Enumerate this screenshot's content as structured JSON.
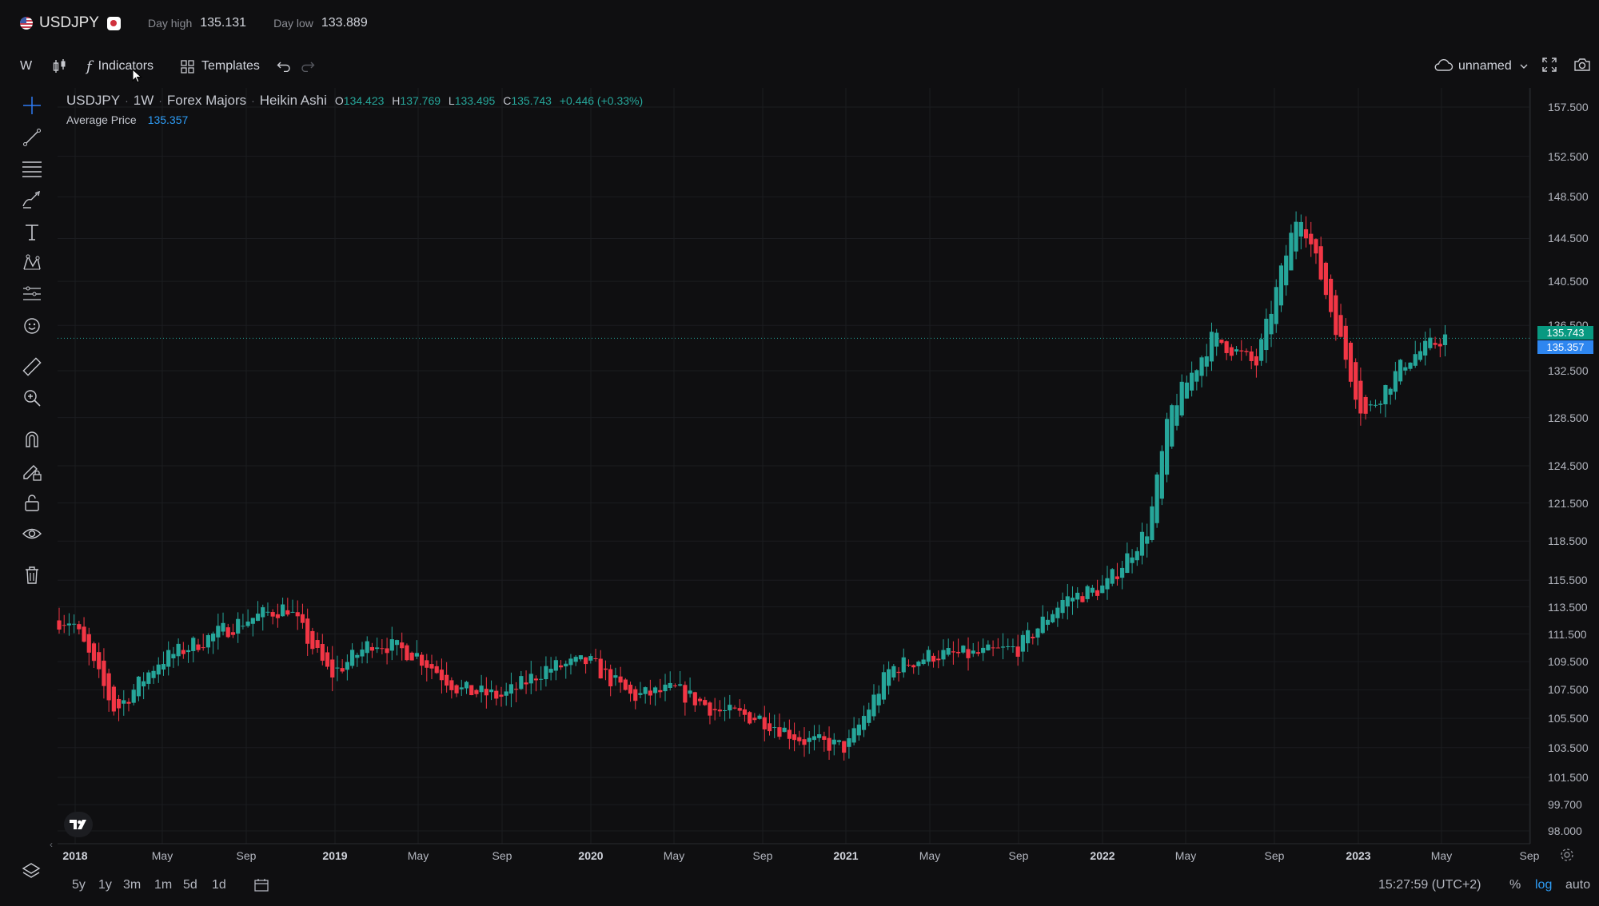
{
  "header": {
    "symbol": "USDJPY",
    "day_high_label": "Day high",
    "day_high_value": "135.131",
    "day_low_label": "Day low",
    "day_low_value": "133.889"
  },
  "toolbar": {
    "interval": "W",
    "indicators_label": "Indicators",
    "templates_label": "Templates",
    "layout_name": "unnamed"
  },
  "legend": {
    "symbol": "USDJPY",
    "interval": "1W",
    "exchange": "Forex Majors",
    "chart_style": "Heikin Ashi",
    "open_label": "O",
    "open": "134.423",
    "high_label": "H",
    "high": "137.769",
    "low_label": "L",
    "low": "133.495",
    "close_label": "C",
    "close": "135.743",
    "change": "+0.446 (+0.33%)",
    "indicator_name": "Average Price",
    "indicator_value": "135.357"
  },
  "price_axis": {
    "ticks": [
      "157.500",
      "152.500",
      "148.500",
      "144.500",
      "140.500",
      "136.500",
      "132.500",
      "128.500",
      "124.500",
      "121.500",
      "118.500",
      "115.500",
      "113.500",
      "111.500",
      "109.500",
      "107.500",
      "105.500",
      "103.500",
      "101.500",
      "99.700",
      "98.000"
    ],
    "last_price_tag": "135.743",
    "average_price_tag": "135.357"
  },
  "time_axis": {
    "labels": [
      "2018",
      "May",
      "Sep",
      "2019",
      "May",
      "Sep",
      "2020",
      "May",
      "Sep",
      "2021",
      "May",
      "Sep",
      "2022",
      "May",
      "Sep",
      "2023",
      "May",
      "Sep"
    ]
  },
  "bottom": {
    "ranges": [
      "5y",
      "1y",
      "3m",
      "1m",
      "5d",
      "1d"
    ],
    "clock": "15:27:59 (UTC+2)",
    "percent_label": "%",
    "log_label": "log",
    "auto_label": "auto"
  },
  "colors": {
    "background": "#0f0f11",
    "up": "#26a69a",
    "down": "#f23645",
    "average_price": "#2e9cf5",
    "log_active": "#2e9cf5"
  },
  "chart_data": {
    "type": "candlestick",
    "style": "Heikin Ashi",
    "symbol": "USDJPY",
    "interval": "1W",
    "scale": "log",
    "grid": true,
    "x": [
      "2018-01",
      "2018-03",
      "2018-05",
      "2018-07",
      "2018-09",
      "2018-11",
      "2019-01",
      "2019-03",
      "2019-05",
      "2019-07",
      "2019-09",
      "2019-11",
      "2020-01",
      "2020-03",
      "2020-05",
      "2020-07",
      "2020-09",
      "2020-11",
      "2021-01",
      "2021-03",
      "2021-05",
      "2021-07",
      "2021-09",
      "2021-11",
      "2022-01",
      "2022-03",
      "2022-04",
      "2022-06",
      "2022-08",
      "2022-10",
      "2022-11",
      "2023-01",
      "2023-03",
      "2023-05"
    ],
    "close": [
      112.5,
      106.0,
      109.5,
      111.0,
      112.5,
      113.5,
      108.5,
      111.0,
      110.0,
      107.5,
      107.0,
      109.0,
      109.5,
      107.0,
      107.5,
      106.0,
      105.5,
      104.0,
      103.5,
      109.0,
      110.0,
      110.0,
      110.5,
      114.0,
      115.0,
      119.5,
      129.0,
      135.5,
      133.0,
      147.5,
      141.0,
      128.5,
      133.5,
      135.7
    ],
    "overlay": {
      "name": "Average Price",
      "value": 135.357
    },
    "ylim": [
      98.0,
      157.5
    ]
  }
}
